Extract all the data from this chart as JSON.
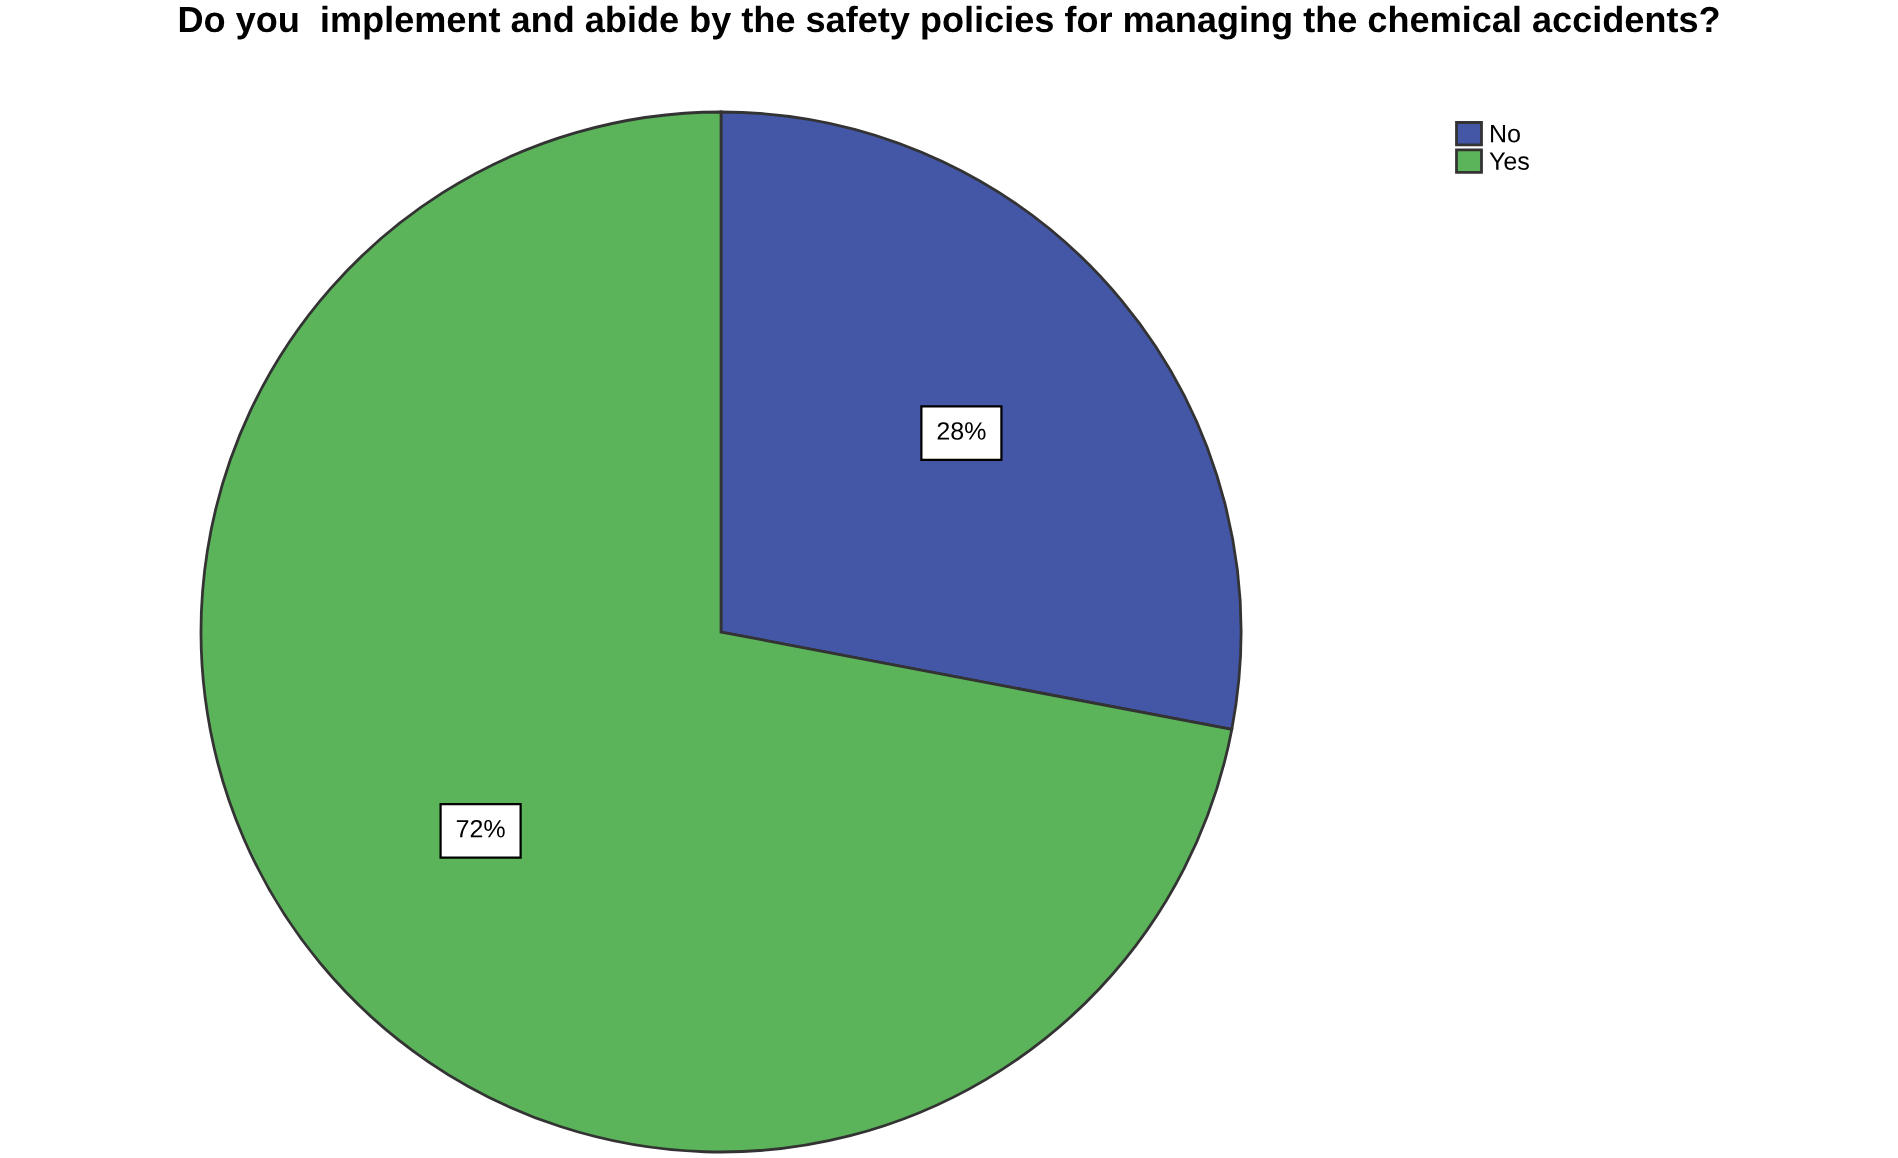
{
  "chart_data": {
    "type": "pie",
    "title": "Do you  implement and abide by the safety policies for managing the chemical accidents?",
    "categories": [
      "No",
      "Yes"
    ],
    "values": [
      28,
      72
    ],
    "colors": [
      "#4456a6",
      "#5bb45a"
    ],
    "value_labels": [
      "28%",
      "72%"
    ],
    "legend": "top right"
  }
}
